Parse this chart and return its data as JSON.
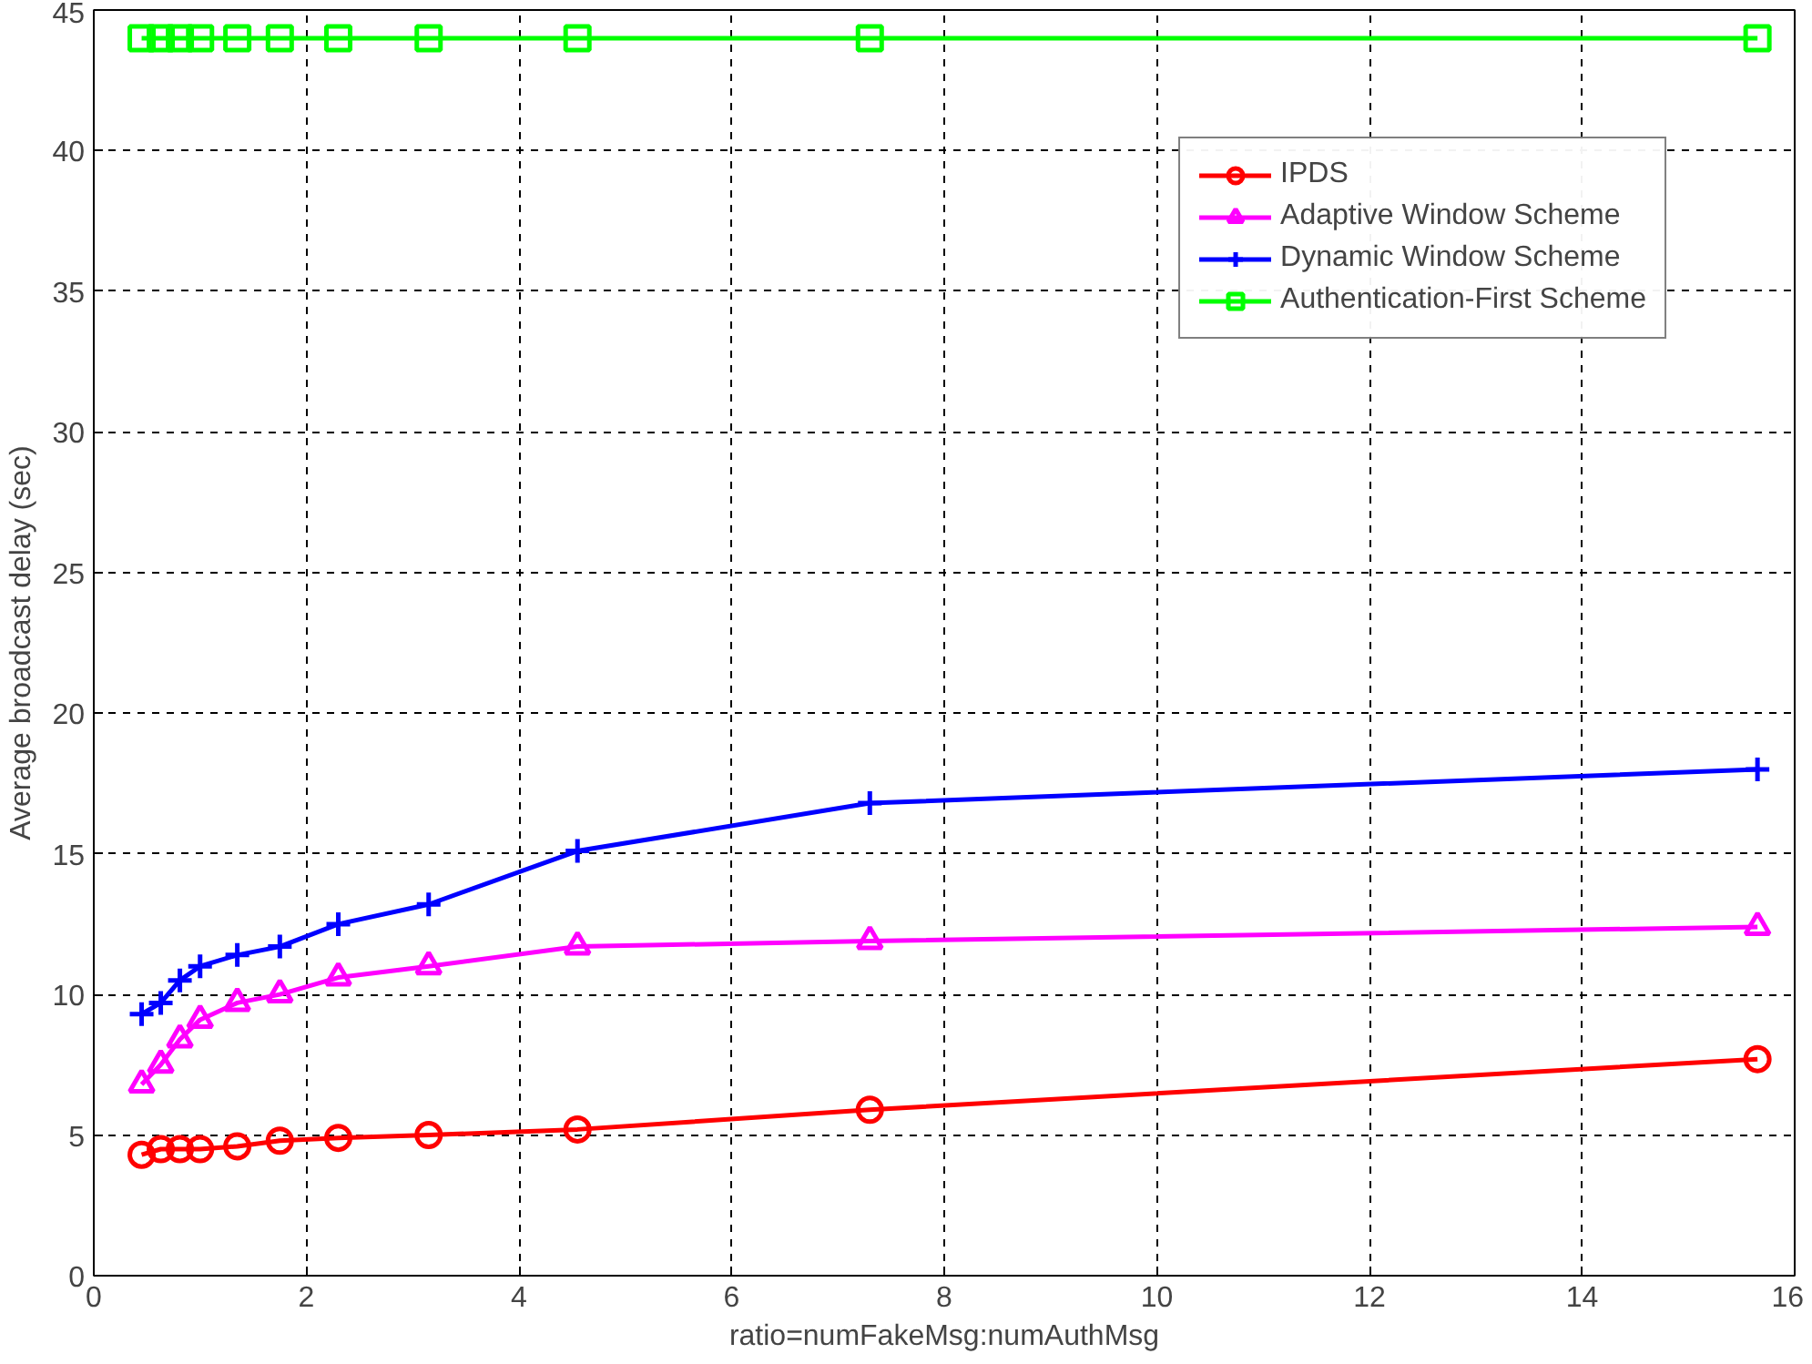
{
  "chart_data": {
    "type": "line",
    "xlabel": "ratio=numFakeMsg:numAuthMsg",
    "ylabel": "Average broadcast delay (sec)",
    "x": [
      0.45,
      0.63,
      0.81,
      1.0,
      1.35,
      1.75,
      2.3,
      3.15,
      4.55,
      7.3,
      15.65
    ],
    "series": [
      {
        "name": "IPDS",
        "color": "#ff0000",
        "marker": "circle",
        "values": [
          4.3,
          4.5,
          4.5,
          4.5,
          4.6,
          4.8,
          4.9,
          5.0,
          5.2,
          5.9,
          7.7
        ]
      },
      {
        "name": "Adaptive Window Scheme",
        "color": "#ff00ff",
        "marker": "triangle",
        "values": [
          6.8,
          7.5,
          8.4,
          9.1,
          9.7,
          10.0,
          10.6,
          11.0,
          11.7,
          11.9,
          12.4
        ]
      },
      {
        "name": "Dynamic Window Scheme",
        "color": "#0000ff",
        "marker": "cross",
        "values": [
          9.3,
          9.7,
          10.5,
          11.0,
          11.4,
          11.7,
          12.5,
          13.2,
          15.1,
          16.8,
          18.0
        ]
      },
      {
        "name": "Authentication-First Scheme",
        "color": "#00ff00",
        "marker": "square",
        "values": [
          44,
          44,
          44,
          44,
          44,
          44,
          44,
          44,
          44,
          44,
          44
        ]
      }
    ],
    "xlim": [
      0,
      16
    ],
    "xticks": [
      0,
      2,
      4,
      6,
      8,
      10,
      12,
      14,
      16
    ],
    "ylim": [
      0,
      45
    ],
    "yticks": [
      0,
      5,
      10,
      15,
      20,
      25,
      30,
      35,
      40,
      45
    ],
    "grid": true,
    "legend": "top right",
    "line_style": "solid"
  }
}
